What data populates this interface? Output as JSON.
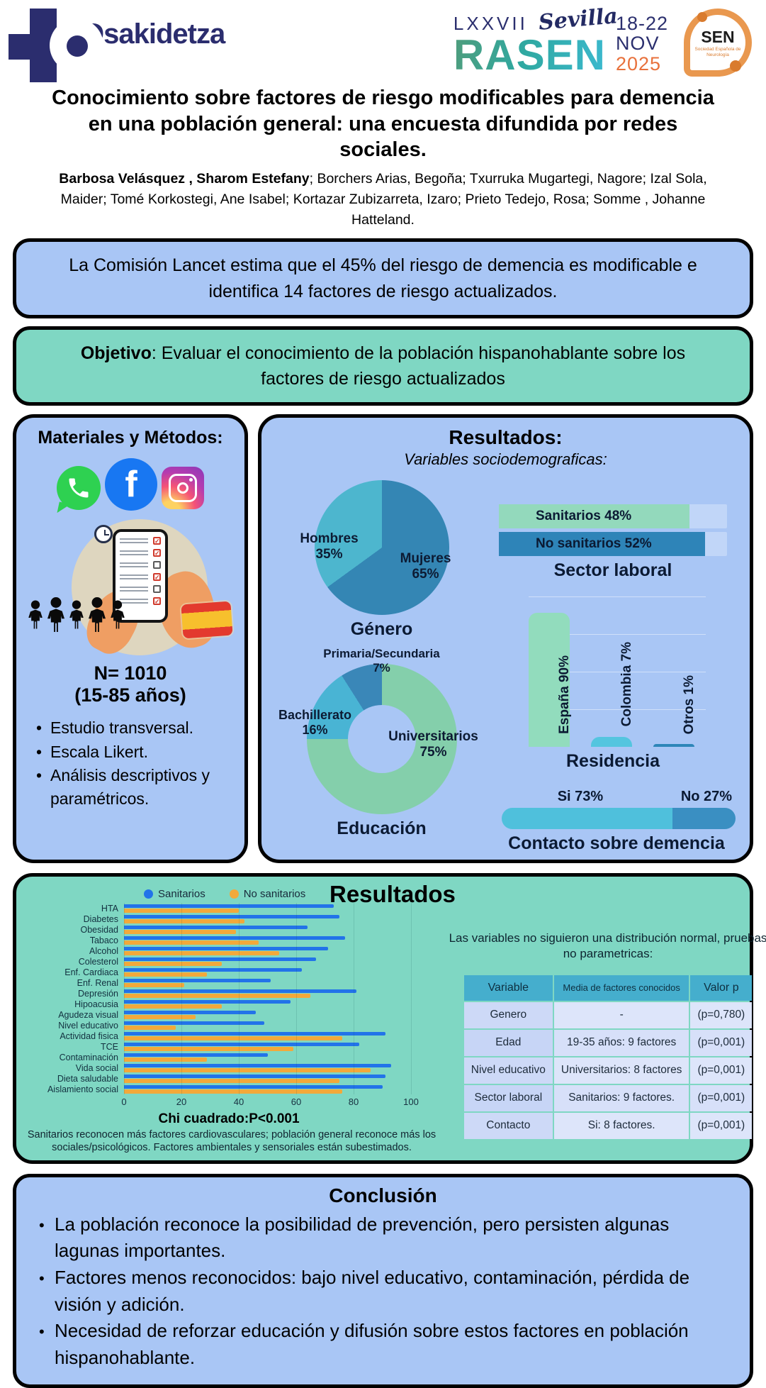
{
  "header": {
    "osakidetza": "Osakidetza",
    "congress": {
      "roman": "LXXVII",
      "name": "RASEN",
      "city": "Sevilla",
      "dates": "18-22",
      "month": "NOV",
      "year": "2025"
    },
    "sen": {
      "abbr": "SEN",
      "caption": "Sociedad Española de Neurología"
    }
  },
  "title": "Conocimiento sobre factores de riesgo modificables para demencia en una población general: una encuesta difundida por redes sociales.",
  "authors": {
    "lead": "Barbosa Velásquez , Sharom Estefany",
    "rest": "; Borchers Arias, Begoña; Txurruka Mugartegi, Nagore; Izal Sola, Maider; Tomé Korkostegi, Ane Isabel; Kortazar Zubizarreta, Izaro; Prieto Tedejo, Rosa; Somme , Johanne Hatteland."
  },
  "intro_box": "La Comisión Lancet estima que el 45% del riesgo de demencia es modificable e identifica 14 factores de riesgo actualizados.",
  "objective_box": {
    "label": "Objetivo",
    "text": ": Evaluar el conocimiento de la población hispanohablante sobre los factores de riesgo actualizados"
  },
  "methods": {
    "title": "Materiales y Métodos:",
    "icons": [
      "whatsapp-icon",
      "facebook-icon",
      "instagram-icon",
      "survey-illustration",
      "people-icon",
      "spain-flag-icon"
    ],
    "n": "N= 1010",
    "age": "(15-85 años)",
    "bullets": [
      "Estudio transversal.",
      "Escala Likert.",
      "Análisis descriptivos y paramétricos."
    ]
  },
  "results_demo": {
    "title": "Resultados:",
    "subtitle": "Variables sociodemograficas:"
  },
  "results_main": {
    "title": "Resultados",
    "note": "Las variables no siguieron una distribución normal, pruebas no parametricas:",
    "table": {
      "headers": [
        "Variable",
        "Media de factores conocidos",
        "Valor p"
      ],
      "rows": [
        [
          "Genero",
          "-",
          "(p=0,780)"
        ],
        [
          "Edad",
          "19-35 años: 9 factores",
          "(p=0,001)"
        ],
        [
          "Nivel educativo",
          "Universitarios: 8 factores",
          "(p=0,001)"
        ],
        [
          "Sector laboral",
          "Sanitarios: 9 factores.",
          "(p=0,001)"
        ],
        [
          "Contacto",
          "Si: 8 factores.",
          "(p=0,001)"
        ]
      ]
    },
    "chi": "Chi cuadrado:P<0.001",
    "caption": "Sanitarios reconocen más factores cardiovasculares; población general reconoce más los sociales/psicológicos. Factores ambientales y sensoriales están subestimados."
  },
  "conclusion": {
    "title": "Conclusión",
    "bullets": [
      "La población reconoce la posibilidad de prevención, pero persisten algunas lagunas importantes.",
      "Factores menos reconocidos: bajo nivel educativo, contaminación, pérdida de visión y adición.",
      "Necesidad de reforzar educación y difusión sobre estos factores en población hispanohablante."
    ]
  },
  "colors": {
    "navy": "#2b2d6e",
    "box_blue": "#a9c6f5",
    "box_green": "#7fd7c3",
    "pie_dark": "#3486b4",
    "pie_light": "#4db6ce",
    "green_bar": "#93d9bc",
    "cyan_bar": "#54c5df",
    "blue_bar": "#2e84b8",
    "donut_green": "#84cfab",
    "legend_blue": "#2273e9",
    "legend_orange": "#f2a93b",
    "table_header": "#45aecd",
    "year_orange": "#e8713c"
  },
  "chart_data": [
    {
      "id": "gender",
      "type": "pie",
      "title": "Género",
      "slices": [
        {
          "label": "Mujeres",
          "pct": "65%",
          "value": 65,
          "color": "#3486b4"
        },
        {
          "label": "Hombres",
          "pct": "35%",
          "value": 35,
          "color": "#4db6ce"
        }
      ]
    },
    {
      "id": "sector",
      "type": "bar",
      "orientation": "horizontal",
      "title": "Sector laboral",
      "bars": [
        {
          "display": "Sanitarios 48%",
          "value": 48,
          "color": "#93d9bc"
        },
        {
          "display": "No sanitarios 52%",
          "value": 52,
          "color": "#2e84b8"
        }
      ]
    },
    {
      "id": "education",
      "type": "donut",
      "title": "Educación",
      "slices": [
        {
          "label": "Universitarios",
          "pct": "75%",
          "value": 75,
          "color": "#84cfab"
        },
        {
          "label": "Bachillerato",
          "pct": "16%",
          "value": 16,
          "color": "#49b4d4"
        },
        {
          "label": "Primaria/Secundaria",
          "pct": "7%",
          "value": 7,
          "color": "#3a87b8"
        }
      ]
    },
    {
      "id": "residence",
      "type": "bar",
      "orientation": "vertical",
      "title": "Residencia",
      "ylim": [
        0,
        100
      ],
      "bars": [
        {
          "display": "España 90%",
          "value": 90,
          "color": "#92dcbd"
        },
        {
          "display": "Colombia 7%",
          "value": 7,
          "color": "#54c5df"
        },
        {
          "display": "Otros 1%",
          "value": 1,
          "color": "#2e86b8"
        }
      ]
    },
    {
      "id": "contact",
      "type": "stacked-bar",
      "title": "Contacto sobre demencia",
      "segments": [
        {
          "display": "Si 73%",
          "value": 73,
          "color": "#4fc0dc"
        },
        {
          "display": "No 27%",
          "value": 27,
          "color": "#3a8fc2"
        }
      ]
    },
    {
      "id": "knowledge",
      "type": "bar",
      "orientation": "horizontal-grouped",
      "legend": [
        "Sanitarios",
        "No sanitarios"
      ],
      "series_colors": [
        "#2273e9",
        "#f2a93b"
      ],
      "categories": [
        "HTA",
        "Diabetes",
        "Obesidad",
        "Tabaco",
        "Alcohol",
        "Colesterol",
        "Enf. Cardiaca",
        "Enf. Renal",
        "Depresión",
        "Hipoacusia",
        "Agudeza visual",
        "Nivel educativo",
        "Actividad fisica",
        "TCE",
        "Contaminación",
        "Vida social",
        "Dieta saludable",
        "Aislamiento social"
      ],
      "series": [
        {
          "name": "Sanitarios",
          "values": [
            73,
            75,
            64,
            77,
            71,
            67,
            62,
            51,
            81,
            58,
            46,
            49,
            91,
            82,
            50,
            93,
            91,
            90
          ]
        },
        {
          "name": "No sanitarios",
          "values": [
            40,
            42,
            39,
            47,
            54,
            34,
            29,
            21,
            65,
            34,
            25,
            18,
            76,
            59,
            29,
            86,
            75,
            76
          ]
        }
      ],
      "xlim": [
        0,
        100
      ],
      "xticks": [
        0,
        20,
        40,
        60,
        80,
        100
      ],
      "grid": true,
      "legend_position": "top"
    }
  ]
}
